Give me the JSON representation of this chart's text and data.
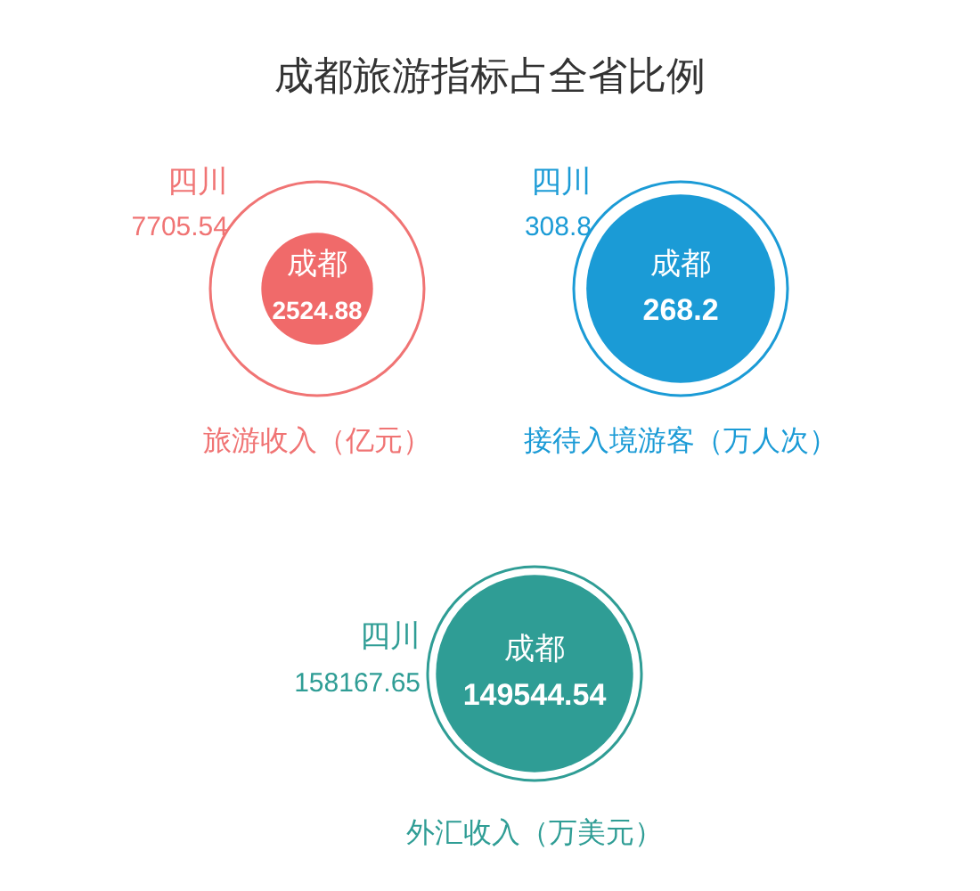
{
  "chart_data": [
    {
      "type": "other",
      "title": "成都旅游指标占全省比例",
      "xlabel": "旅游收入（亿元）",
      "categories": [
        "四川",
        "成都"
      ],
      "values": [
        7705.54,
        2524.88
      ],
      "colors": [
        "#f07474",
        "#f06a6a"
      ],
      "data_labels": true
    },
    {
      "type": "other",
      "xlabel": "接待入境游客（万人次）",
      "categories": [
        "四川",
        "成都"
      ],
      "values": [
        308.8,
        268.2
      ],
      "colors": [
        "#1b9bd6",
        "#1b9bd6"
      ],
      "data_labels": true
    },
    {
      "type": "other",
      "xlabel": "外汇收入（万美元）",
      "categories": [
        "四川",
        "成都"
      ],
      "values": [
        158167.65,
        149544.54
      ],
      "colors": [
        "#2f9d95",
        "#2f9d95"
      ],
      "data_labels": true
    }
  ]
}
